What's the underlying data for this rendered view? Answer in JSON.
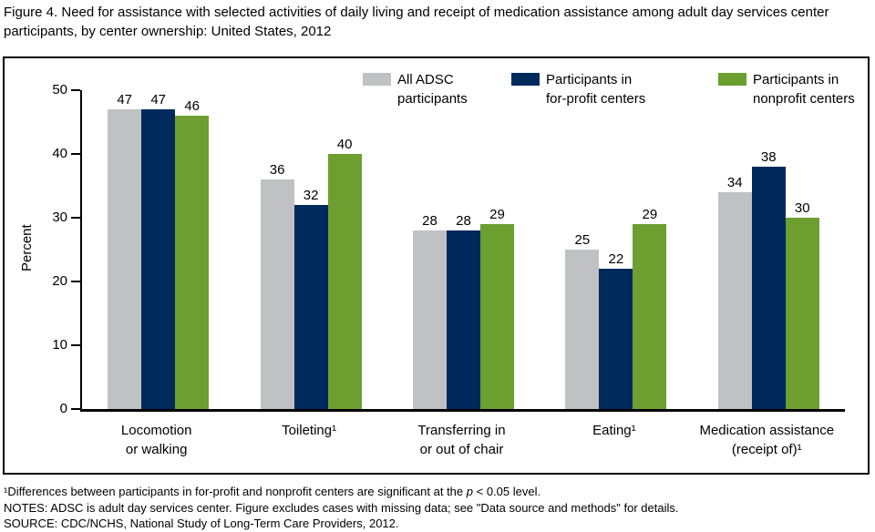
{
  "page": {
    "title": "Figure 4. Need for assistance with selected activities of daily living and receipt of medication assistance among adult day services center participants, by center ownership: United States, 2012"
  },
  "legend": {
    "items": [
      {
        "line1": "All ADSC",
        "line2": "participants"
      },
      {
        "line1": "Participants in",
        "line2": "for-profit centers"
      },
      {
        "line1": "Participants in",
        "line2": "nonprofit centers"
      }
    ]
  },
  "chart_data": {
    "type": "bar",
    "title": "Need for assistance with selected activities of daily living and receipt of medication assistance among adult day services center participants, by center ownership: United States, 2012",
    "xlabel": "",
    "ylabel": "Percent",
    "ylim": [
      0,
      50
    ],
    "yticks": [
      0,
      10,
      20,
      30,
      40,
      50
    ],
    "grid": false,
    "legend_position": "top-right",
    "categories": [
      "Locomotion or walking",
      "Toileting¹",
      "Transferring in or out of chair",
      "Eating¹",
      "Medication assistance (receipt of)¹"
    ],
    "categories_display": [
      [
        "Locomotion",
        "or walking"
      ],
      [
        "Toileting¹"
      ],
      [
        "Transferring in",
        "or out of chair"
      ],
      [
        "Eating¹"
      ],
      [
        "Medication assistance",
        "(receipt of)¹"
      ]
    ],
    "series": [
      {
        "name": "All ADSC participants",
        "color": "#BFC1C3",
        "values": [
          47,
          36,
          28,
          25,
          34
        ]
      },
      {
        "name": "Participants in for-profit centers",
        "color": "#002A5C",
        "values": [
          47,
          32,
          28,
          22,
          38
        ]
      },
      {
        "name": "Participants in nonprofit centers",
        "color": "#6C9E30",
        "values": [
          46,
          40,
          29,
          29,
          30
        ]
      }
    ]
  },
  "footnotes": {
    "note1_pre": "¹Differences between participants in for-profit and nonprofit centers are significant at the ",
    "note1_italic": "p",
    "note1_post": " < 0.05 level.",
    "notes": "NOTES: ADSC is adult day services center. Figure excludes cases with missing data; see \"Data source and methods\" for details.",
    "source": "SOURCE: CDC/NCHS, National Study of Long-Term Care Providers, 2012."
  }
}
